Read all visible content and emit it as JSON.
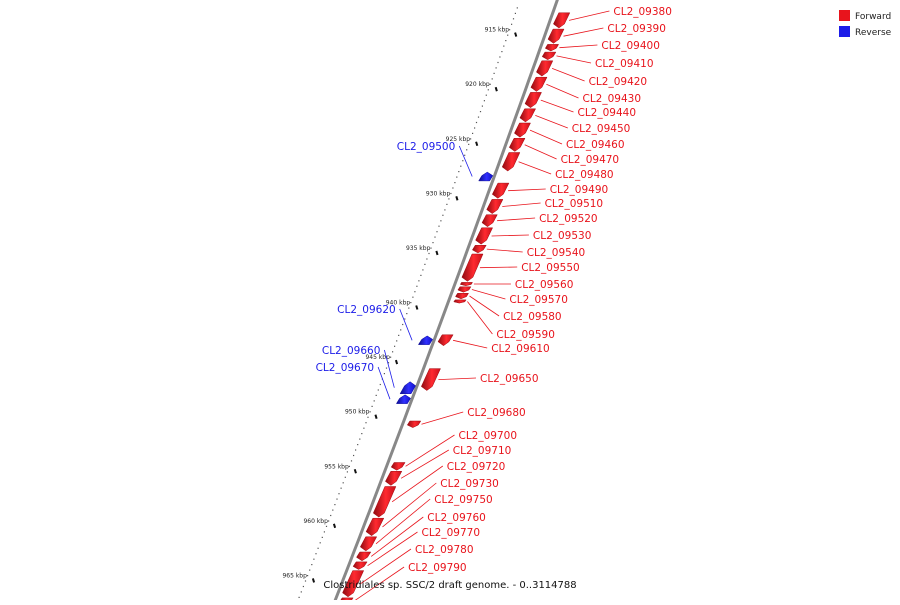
{
  "caption": "Clostridiales sp. SSC/2 draft genome. - 0..3114788",
  "colors": {
    "forward": "#e8141c",
    "forward_dark": "#a00a10",
    "reverse": "#1c1ce8",
    "reverse_dark": "#0a0a9a",
    "backbone": "#888888",
    "ticks": "#111111"
  },
  "legend": [
    {
      "label": "Forward",
      "strand": "forward"
    },
    {
      "label": "Reverse",
      "strand": "reverse"
    }
  ],
  "scale": {
    "unit": "kbp",
    "ticks": [
      {
        "value": 915,
        "label": "915 kbp"
      },
      {
        "value": 920,
        "label": "920 kbp"
      },
      {
        "value": 925,
        "label": "925 kbp"
      },
      {
        "value": 930,
        "label": "930 kbp"
      },
      {
        "value": 935,
        "label": "935 kbp"
      },
      {
        "value": 940,
        "label": "940 kbp"
      },
      {
        "value": 945,
        "label": "945 kbp"
      },
      {
        "value": 950,
        "label": "950 kbp"
      },
      {
        "value": 955,
        "label": "955 kbp"
      },
      {
        "value": 960,
        "label": "960 kbp"
      },
      {
        "value": 965,
        "label": "965 kbp"
      }
    ]
  },
  "genes": [
    {
      "name": "CL2_09380",
      "strand": "forward",
      "start": 913.0,
      "end": 914.4
    },
    {
      "name": "CL2_09390",
      "strand": "forward",
      "start": 914.5,
      "end": 915.8
    },
    {
      "name": "CL2_09400",
      "strand": "forward",
      "start": 915.9,
      "end": 916.5
    },
    {
      "name": "CL2_09410",
      "strand": "forward",
      "start": 916.6,
      "end": 917.3
    },
    {
      "name": "CL2_09420",
      "strand": "forward",
      "start": 917.4,
      "end": 918.8
    },
    {
      "name": "CL2_09430",
      "strand": "forward",
      "start": 918.9,
      "end": 920.2
    },
    {
      "name": "CL2_09440",
      "strand": "forward",
      "start": 920.3,
      "end": 921.7
    },
    {
      "name": "CL2_09450",
      "strand": "forward",
      "start": 921.8,
      "end": 923.0
    },
    {
      "name": "CL2_09460",
      "strand": "forward",
      "start": 923.1,
      "end": 924.4
    },
    {
      "name": "CL2_09470",
      "strand": "forward",
      "start": 924.5,
      "end": 925.7
    },
    {
      "name": "CL2_09480",
      "strand": "forward",
      "start": 925.8,
      "end": 927.5
    },
    {
      "name": "CL2_09500",
      "strand": "reverse",
      "start": 927.6,
      "end": 928.4
    },
    {
      "name": "CL2_09490",
      "strand": "forward",
      "start": 928.6,
      "end": 930.0
    },
    {
      "name": "CL2_09510",
      "strand": "forward",
      "start": 930.1,
      "end": 931.4
    },
    {
      "name": "CL2_09520",
      "strand": "forward",
      "start": 931.5,
      "end": 932.6
    },
    {
      "name": "CL2_09530",
      "strand": "forward",
      "start": 932.7,
      "end": 934.2
    },
    {
      "name": "CL2_09540",
      "strand": "forward",
      "start": 934.3,
      "end": 935.0
    },
    {
      "name": "CL2_09550",
      "strand": "forward",
      "start": 935.1,
      "end": 937.6
    },
    {
      "name": "CL2_09560",
      "strand": "forward",
      "start": 937.7,
      "end": 938.0
    },
    {
      "name": "CL2_09570",
      "strand": "forward",
      "start": 938.1,
      "end": 938.6
    },
    {
      "name": "CL2_09580",
      "strand": "forward",
      "start": 938.7,
      "end": 939.2
    },
    {
      "name": "CL2_09590",
      "strand": "forward",
      "start": 939.3,
      "end": 939.6
    },
    {
      "name": "CL2_09620",
      "strand": "reverse",
      "start": 942.6,
      "end": 943.4
    },
    {
      "name": "CL2_09610",
      "strand": "forward",
      "start": 942.5,
      "end": 943.5
    },
    {
      "name": "CL2_09650",
      "strand": "forward",
      "start": 945.6,
      "end": 947.6
    },
    {
      "name": "CL2_09660",
      "strand": "reverse",
      "start": 946.8,
      "end": 947.9
    },
    {
      "name": "CL2_09670",
      "strand": "reverse",
      "start": 948.0,
      "end": 948.8
    },
    {
      "name": "CL2_09680",
      "strand": "forward",
      "start": 950.4,
      "end": 951.0
    },
    {
      "name": "CL2_09700",
      "strand": "forward",
      "start": 954.2,
      "end": 954.9
    },
    {
      "name": "CL2_09710",
      "strand": "forward",
      "start": 955.0,
      "end": 956.3
    },
    {
      "name": "CL2_09720",
      "strand": "forward",
      "start": 956.4,
      "end": 959.2
    },
    {
      "name": "CL2_09730",
      "strand": "forward",
      "start": 959.3,
      "end": 960.9
    },
    {
      "name": "CL2_09750",
      "strand": "forward",
      "start": 961.0,
      "end": 962.3
    },
    {
      "name": "CL2_09760",
      "strand": "forward",
      "start": 962.4,
      "end": 963.2
    },
    {
      "name": "CL2_09770",
      "strand": "forward",
      "start": 963.3,
      "end": 964.0
    },
    {
      "name": "CL2_09780",
      "strand": "forward",
      "start": 964.1,
      "end": 966.5
    },
    {
      "name": "CL2_09790",
      "strand": "forward",
      "start": 966.6,
      "end": 967.2
    },
    {
      "name": "",
      "strand": "forward",
      "start": 967.3,
      "end": 968.8
    }
  ]
}
